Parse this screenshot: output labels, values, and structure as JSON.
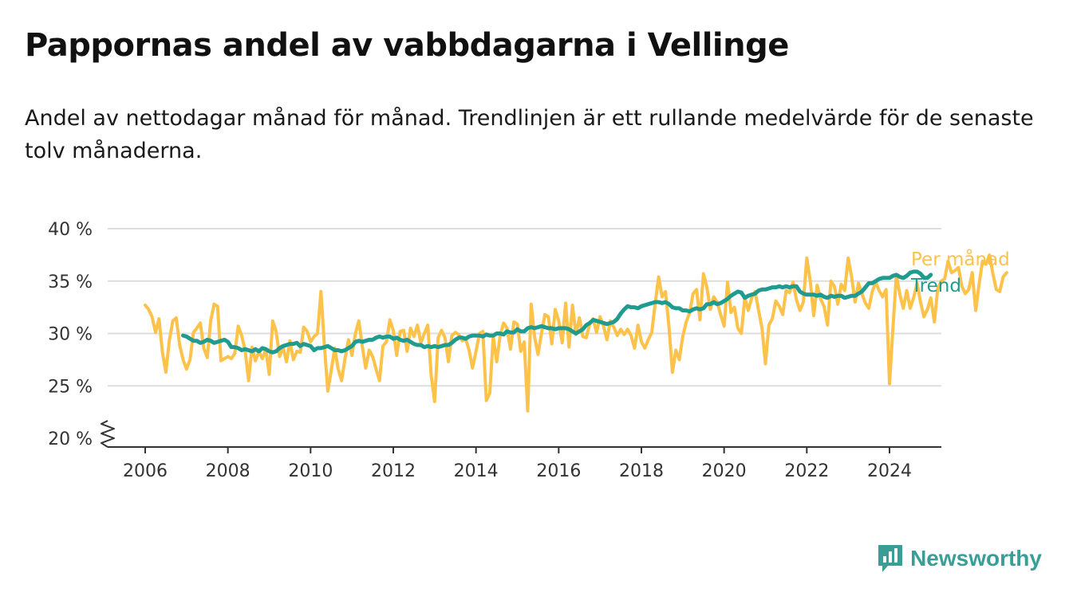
{
  "title": "Pappornas andel av vabbdagarna i Vellinge",
  "subtitle": "Andel av nettodagar månad för månad. Trendlinjen är ett rullande medelvärde för de senaste tolv månaderna.",
  "brand": {
    "name": "Newsworthy",
    "icon": "newsworthy-logo-icon",
    "color": "#3a9d96"
  },
  "colors": {
    "monthly": "#fcc24a",
    "trend": "#1f9b8f",
    "grid": "#dddddd",
    "axis": "#333333"
  },
  "chart_data": {
    "type": "line",
    "title": "Pappornas andel av vabbdagarna i Vellinge",
    "xlabel": "",
    "ylabel": "",
    "xlim": [
      2005.6,
      2025.1
    ],
    "ylim": [
      20,
      40
    ],
    "y_axis_break": true,
    "x_ticks": [
      "2006",
      "2008",
      "2010",
      "2012",
      "2014",
      "2016",
      "2018",
      "2020",
      "2022",
      "2024"
    ],
    "y_ticks": [
      "20 %",
      "25 %",
      "30 %",
      "35 %",
      "40 %"
    ],
    "y_tick_values": [
      20,
      25,
      30,
      35,
      40
    ],
    "grid": true,
    "legend": "right, at line ends",
    "series": [
      {
        "name": "Per månad",
        "color": "#fcc24a",
        "start": "2006-01",
        "values": [
          32.7,
          32.3,
          31.6,
          30.1,
          31.4,
          28.2,
          26.3,
          29.3,
          31.2,
          31.5,
          28.9,
          27.5,
          26.6,
          27.5,
          30.1,
          30.5,
          31.0,
          28.6,
          27.7,
          31.2,
          32.8,
          32.6,
          27.4,
          27.6,
          27.8,
          27.6,
          28.1,
          30.7,
          29.8,
          28.4,
          25.5,
          28.7,
          27.4,
          28.3,
          27.6,
          28.5,
          26.1,
          31.2,
          30.2,
          27.8,
          28.7,
          27.3,
          29.3,
          27.5,
          28.3,
          28.2,
          30.6,
          30.2,
          29.2,
          29.7,
          30.0,
          34.0,
          28.9,
          24.5,
          26.5,
          28.6,
          26.6,
          25.5,
          27.6,
          29.4,
          27.9,
          30.0,
          31.2,
          28.8,
          26.7,
          28.4,
          27.8,
          26.6,
          25.5,
          28.8,
          29.2,
          31.3,
          30.3,
          27.9,
          30.2,
          30.3,
          28.3,
          30.5,
          29.7,
          30.8,
          29.1,
          30.0,
          30.8,
          26.0,
          23.5,
          29.6,
          30.3,
          29.6,
          27.3,
          29.8,
          30.1,
          29.9,
          29.3,
          29.5,
          28.4,
          26.7,
          28.3,
          30.0,
          30.2,
          23.6,
          24.3,
          29.7,
          27.3,
          29.8,
          31.0,
          30.5,
          28.5,
          31.1,
          30.9,
          28.3,
          29.2,
          22.6,
          32.8,
          29.7,
          28.0,
          30.0,
          31.8,
          31.6,
          29.0,
          32.3,
          31.2,
          29.1,
          32.9,
          28.7,
          32.7,
          29.9,
          31.5,
          29.7,
          29.6,
          30.9,
          31.4,
          30.1,
          31.6,
          30.7,
          29.4,
          31.2,
          30.6,
          29.8,
          30.4,
          29.9,
          30.4,
          29.8,
          28.6,
          30.8,
          29.2,
          28.6,
          29.4,
          30.1,
          32.9,
          35.4,
          33.5,
          34.0,
          30.6,
          26.3,
          28.4,
          27.5,
          29.7,
          31.1,
          32.0,
          33.8,
          34.2,
          31.3,
          35.7,
          34.4,
          32.3,
          33.5,
          33.0,
          31.8,
          30.7,
          34.9,
          32.0,
          32.5,
          30.5,
          30.0,
          33.4,
          32.2,
          33.4,
          34.0,
          32.2,
          30.5,
          27.1,
          30.8,
          31.4,
          33.1,
          32.6,
          31.8,
          34.1,
          33.9,
          34.9,
          33.2,
          32.2,
          33.0,
          37.2,
          35.0,
          31.7,
          34.6,
          33.3,
          32.6,
          30.8,
          35.0,
          34.5,
          32.8,
          34.7,
          34.1,
          37.2,
          35.4,
          33.0,
          34.8,
          33.8,
          32.9,
          32.4,
          34.0,
          34.9,
          34.1,
          33.5,
          34.2,
          25.2,
          30.5,
          35.6,
          33.7,
          32.4,
          34.1,
          32.4,
          33.4,
          34.8,
          33.0,
          31.6,
          32.3,
          33.4,
          31.1,
          34.3,
          35.0,
          35.2,
          36.9,
          35.8,
          36.0,
          36.3,
          34.5,
          33.8,
          34.2,
          35.8,
          32.2,
          34.7,
          36.9,
          36.6,
          37.5,
          35.7,
          34.2,
          34.0,
          35.4,
          35.8
        ],
        "note": "monthly values estimated from the plotted line"
      },
      {
        "name": "Trend",
        "color": "#1f9b8f",
        "start": "2006-12",
        "values": [
          29.8,
          29.7,
          29.5,
          29.3,
          29.3,
          29.1,
          29.2,
          29.4,
          29.3,
          29.1,
          29.2,
          29.3,
          29.4,
          29.2,
          28.7,
          28.7,
          28.6,
          28.4,
          28.5,
          28.4,
          28.3,
          28.5,
          28.3,
          28.6,
          28.5,
          28.3,
          28.2,
          28.3,
          28.6,
          28.8,
          28.9,
          29.0,
          29.0,
          29.1,
          28.8,
          29.0,
          28.9,
          28.8,
          28.4,
          28.6,
          28.6,
          28.7,
          28.8,
          28.6,
          28.4,
          28.4,
          28.3,
          28.4,
          28.6,
          28.8,
          29.2,
          29.3,
          29.2,
          29.3,
          29.4,
          29.4,
          29.6,
          29.7,
          29.6,
          29.7,
          29.7,
          29.5,
          29.6,
          29.4,
          29.3,
          29.4,
          29.2,
          29.0,
          28.9,
          28.9,
          28.7,
          28.8,
          28.7,
          28.8,
          28.7,
          28.8,
          28.9,
          28.9,
          29.1,
          29.4,
          29.6,
          29.6,
          29.5,
          29.7,
          29.8,
          29.8,
          29.8,
          29.7,
          29.9,
          29.8,
          29.8,
          30.0,
          30.0,
          29.9,
          30.2,
          30.1,
          30.1,
          30.4,
          30.2,
          30.2,
          30.5,
          30.6,
          30.5,
          30.6,
          30.7,
          30.6,
          30.5,
          30.5,
          30.4,
          30.5,
          30.5,
          30.5,
          30.4,
          30.2,
          30.0,
          30.2,
          30.4,
          30.8,
          31.0,
          31.3,
          31.2,
          31.1,
          31.0,
          30.9,
          31.0,
          31.1,
          31.4,
          31.9,
          32.3,
          32.6,
          32.5,
          32.5,
          32.4,
          32.6,
          32.7,
          32.8,
          32.9,
          33.0,
          33.0,
          32.9,
          33.0,
          32.8,
          32.5,
          32.4,
          32.4,
          32.2,
          32.2,
          32.1,
          32.3,
          32.4,
          32.3,
          32.4,
          32.8,
          32.8,
          33.0,
          32.8,
          32.9,
          33.1,
          33.3,
          33.6,
          33.8,
          34.0,
          33.9,
          33.4,
          33.6,
          33.7,
          33.8,
          34.1,
          34.2,
          34.2,
          34.3,
          34.4,
          34.4,
          34.5,
          34.4,
          34.5,
          34.4,
          34.5,
          34.5,
          34.0,
          33.8,
          33.7,
          33.7,
          33.7,
          33.6,
          33.7,
          33.5,
          33.4,
          33.6,
          33.5,
          33.6,
          33.6,
          33.4,
          33.5,
          33.6,
          33.6,
          33.8,
          34.0,
          34.4,
          34.8,
          34.8,
          35.0,
          35.2,
          35.3,
          35.3,
          35.3,
          35.5,
          35.6,
          35.4,
          35.3,
          35.5,
          35.8,
          35.9,
          35.9,
          35.7,
          35.3,
          35.3,
          35.6
        ]
      }
    ]
  }
}
